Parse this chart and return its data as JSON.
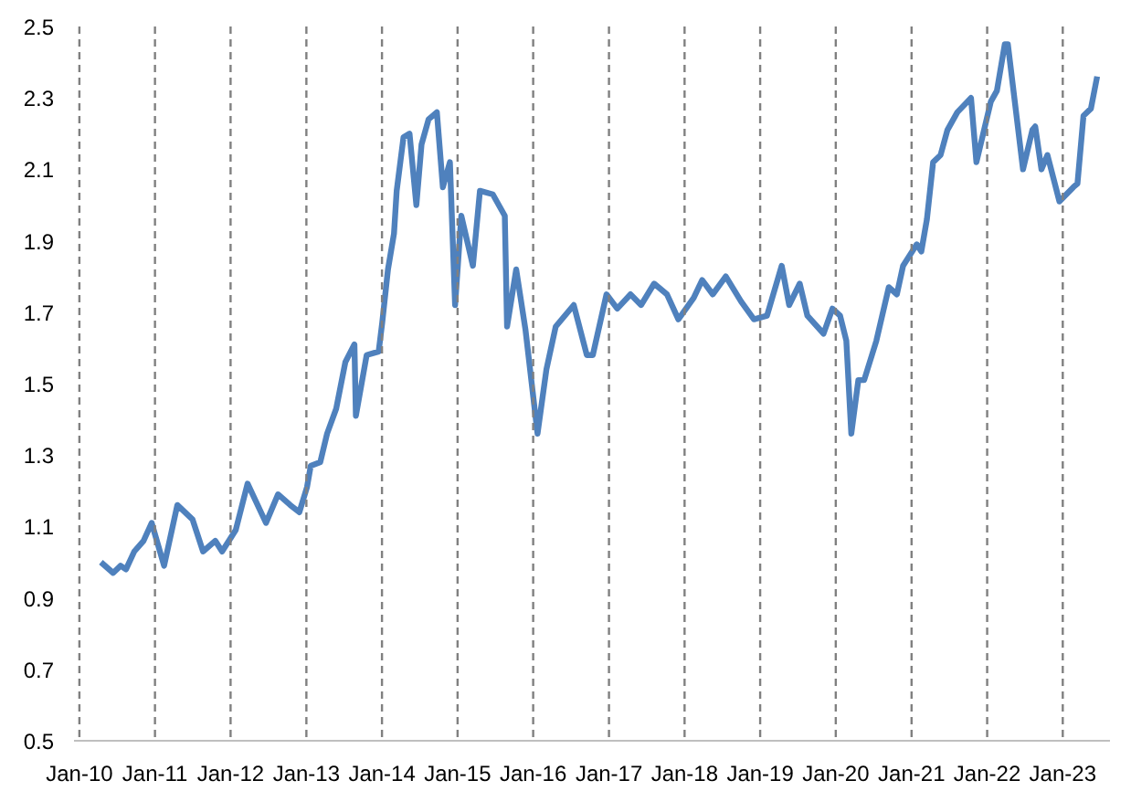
{
  "chart_data": {
    "type": "line",
    "x": [
      "2010-04-15",
      "2010-06-13",
      "2010-07-19",
      "2010-08-14",
      "2010-09-23",
      "2010-11-07",
      "2010-12-16",
      "2011-02-14",
      "2011-04-19",
      "2011-07-01",
      "2011-08-21",
      "2011-10-19",
      "2011-11-21",
      "2012-01-26",
      "2012-03-23",
      "2012-06-20",
      "2012-08-17",
      "2012-10-15",
      "2012-11-28",
      "2013-01-04",
      "2013-01-22",
      "2013-03-09",
      "2013-04-11",
      "2013-05-25",
      "2013-07-08",
      "2013-08-21",
      "2013-08-28",
      "2013-10-19",
      "2013-12-16",
      "2014-01-02",
      "2014-01-30",
      "2014-02-28",
      "2014-03-13",
      "2014-04-15",
      "2014-05-14",
      "2014-06-16",
      "2014-07-11",
      "2014-08-14",
      "2014-09-23",
      "2014-10-22",
      "2014-11-25",
      "2014-12-20",
      "2015-01-19",
      "2015-03-16",
      "2015-04-19",
      "2015-06-20",
      "2015-08-17",
      "2015-08-28",
      "2015-10-11",
      "2015-11-25",
      "2016-01-22",
      "2016-03-05",
      "2016-04-19",
      "2016-07-15",
      "2016-09-16",
      "2016-10-15",
      "2016-12-20",
      "2017-02-10",
      "2017-04-15",
      "2017-06-05",
      "2017-08-07",
      "2017-10-08",
      "2017-12-02",
      "2018-02-14",
      "2018-03-27",
      "2018-05-17",
      "2018-07-19",
      "2018-10-01",
      "2018-12-02",
      "2019-02-03",
      "2019-04-15",
      "2019-05-21",
      "2019-07-11",
      "2019-08-17",
      "2019-11-03",
      "2019-12-16",
      "2020-01-22",
      "2020-02-21",
      "2020-03-16",
      "2020-04-19",
      "2020-05-17",
      "2020-07-15",
      "2020-09-13",
      "2020-10-22",
      "2020-11-21",
      "2021-01-26",
      "2021-02-17",
      "2021-03-16",
      "2021-04-15",
      "2021-05-21",
      "2021-06-23",
      "2021-08-10",
      "2021-10-15",
      "2021-11-10",
      "2022-01-19",
      "2022-02-17",
      "2022-03-27",
      "2022-04-11",
      "2022-06-23",
      "2022-08-07",
      "2022-08-21",
      "2022-09-20",
      "2022-10-19",
      "2022-12-16",
      "2023-02-21",
      "2023-03-13",
      "2023-04-11",
      "2023-05-17",
      "2023-06-16"
    ],
    "series": [
      {
        "color": "#4f81bd",
        "values": [
          1.0,
          0.97,
          0.99,
          0.98,
          1.03,
          1.06,
          1.11,
          0.99,
          1.16,
          1.12,
          1.03,
          1.06,
          1.03,
          1.09,
          1.22,
          1.11,
          1.19,
          1.16,
          1.14,
          1.21,
          1.27,
          1.28,
          1.36,
          1.43,
          1.56,
          1.61,
          1.41,
          1.58,
          1.59,
          1.67,
          1.82,
          1.92,
          2.04,
          2.19,
          2.2,
          2.0,
          2.17,
          2.24,
          2.26,
          2.05,
          2.12,
          1.72,
          1.97,
          1.83,
          2.04,
          2.03,
          1.97,
          1.66,
          1.82,
          1.65,
          1.36,
          1.54,
          1.66,
          1.72,
          1.58,
          1.58,
          1.75,
          1.71,
          1.75,
          1.72,
          1.78,
          1.75,
          1.68,
          1.74,
          1.79,
          1.75,
          1.8,
          1.73,
          1.68,
          1.69,
          1.83,
          1.72,
          1.78,
          1.69,
          1.64,
          1.71,
          1.69,
          1.62,
          1.36,
          1.51,
          1.51,
          1.62,
          1.77,
          1.75,
          1.83,
          1.89,
          1.87,
          1.96,
          2.12,
          2.14,
          2.21,
          2.26,
          2.3,
          2.12,
          2.29,
          2.32,
          2.45,
          2.45,
          2.1,
          2.21,
          2.22,
          2.1,
          2.14,
          2.01,
          2.05,
          2.06,
          2.25,
          2.27,
          2.36
        ]
      }
    ],
    "xlim": [
      "2009-12-06",
      "2023-08-17"
    ],
    "xticks": [
      {
        "value": "2010-01-01",
        "label": "Jan-10"
      },
      {
        "value": "2011-01-01",
        "label": "Jan-11"
      },
      {
        "value": "2012-01-01",
        "label": "Jan-12"
      },
      {
        "value": "2013-01-01",
        "label": "Jan-13"
      },
      {
        "value": "2014-01-01",
        "label": "Jan-14"
      },
      {
        "value": "2015-01-01",
        "label": "Jan-15"
      },
      {
        "value": "2016-01-01",
        "label": "Jan-16"
      },
      {
        "value": "2017-01-01",
        "label": "Jan-17"
      },
      {
        "value": "2018-01-01",
        "label": "Jan-18"
      },
      {
        "value": "2019-01-01",
        "label": "Jan-19"
      },
      {
        "value": "2020-01-01",
        "label": "Jan-20"
      },
      {
        "value": "2021-01-01",
        "label": "Jan-21"
      },
      {
        "value": "2022-01-01",
        "label": "Jan-22"
      },
      {
        "value": "2023-01-01",
        "label": "Jan-23"
      }
    ],
    "ylim": [
      0.5,
      2.5
    ],
    "yticks": [
      0.5,
      0.7,
      0.9,
      1.1,
      1.3,
      1.5,
      1.7,
      1.9,
      2.1,
      2.3,
      2.5
    ],
    "grid": "x",
    "line_style": "solid"
  }
}
